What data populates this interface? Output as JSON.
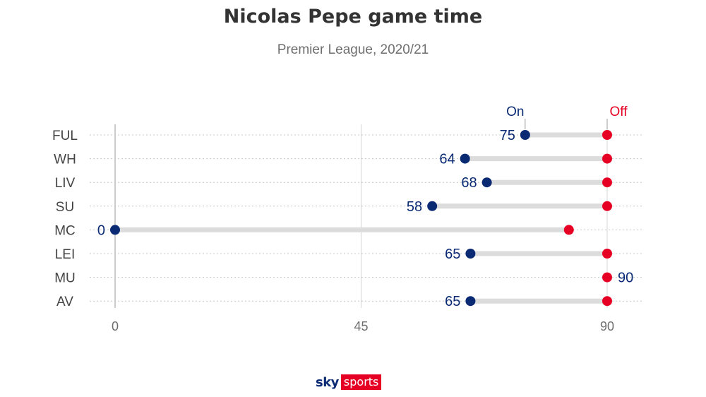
{
  "title": "Nicolas Pepe game time",
  "subtitle": "Premier League, 2020/21",
  "logo": {
    "sky": "sky",
    "sports": "sports"
  },
  "colors": {
    "on": "#0b2a74",
    "off": "#e60023",
    "bar": "#dcdcdc",
    "grid": "#c8c8c8",
    "axis_text": "#6e6e6e",
    "label_text": "#444444"
  },
  "chart_data": {
    "type": "dumbbell",
    "title": "Nicolas Pepe game time",
    "subtitle": "Premier League, 2020/21",
    "legend": {
      "on": "On",
      "off": "Off"
    },
    "categories": [
      "FUL",
      "WH",
      "LIV",
      "SU",
      "MC",
      "LEI",
      "MU",
      "AV"
    ],
    "on": [
      75,
      64,
      68,
      58,
      0,
      65,
      90,
      65
    ],
    "off": [
      90,
      90,
      90,
      90,
      83,
      90,
      90,
      90
    ],
    "on_labels": [
      "75",
      "64",
      "68",
      "58",
      "0",
      "65",
      null,
      "65"
    ],
    "off_labels": [
      null,
      null,
      null,
      null,
      null,
      null,
      "90",
      null
    ],
    "x_ticks": [
      0,
      45,
      90
    ],
    "xlim": [
      0,
      90
    ],
    "grid": true
  }
}
